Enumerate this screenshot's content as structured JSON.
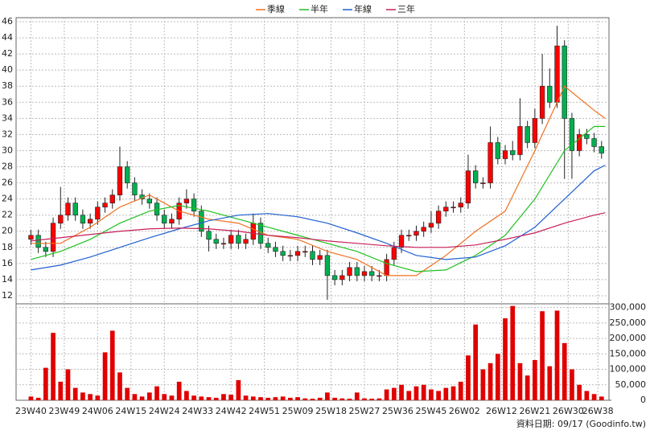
{
  "chart_data": {
    "type": "candlestick",
    "x": [
      0,
      2,
      4,
      6,
      8,
      10,
      12,
      14,
      16,
      18,
      20,
      22,
      24,
      26,
      28,
      30,
      32,
      34,
      36,
      38,
      40,
      42,
      44,
      46,
      48,
      50,
      52,
      54,
      56,
      58,
      60,
      62,
      64,
      66,
      68,
      70,
      72,
      74,
      76,
      78,
      80,
      82,
      84,
      86,
      88,
      90,
      92,
      94,
      96,
      98,
      100,
      102,
      104,
      106,
      108,
      110,
      112,
      114,
      116,
      118,
      120,
      122,
      124,
      126,
      128,
      130,
      132,
      134,
      136,
      138,
      140,
      142,
      144,
      146,
      148,
      150,
      152,
      154
    ],
    "open": [
      19,
      19.5,
      18,
      17.5,
      21,
      22,
      23.5,
      22,
      21,
      21.5,
      23,
      23.5,
      24.5,
      28,
      26,
      24.5,
      24,
      23.5,
      22,
      21,
      21.5,
      23.5,
      24,
      22.5,
      20,
      19,
      18.5,
      18.5,
      19.5,
      18.5,
      19,
      21,
      18.5,
      18,
      17.5,
      17,
      17,
      17.5,
      17.5,
      16.5,
      17,
      14.5,
      14,
      14.5,
      15.5,
      14.5,
      15,
      14.5,
      14.5,
      16.5,
      18,
      19.5,
      19.5,
      20,
      20.5,
      21,
      22.5,
      23,
      23,
      23.5,
      27.5,
      26,
      26,
      31,
      29,
      30,
      29.5,
      33,
      31,
      34,
      38,
      36,
      43,
      34,
      30,
      32,
      31.5,
      30.5
    ],
    "high": [
      20.2,
      20.2,
      18.7,
      21.7,
      25.5,
      24.2,
      24.2,
      22.7,
      22.2,
      23.7,
      24.2,
      25.2,
      30.5,
      28.7,
      26.7,
      25.2,
      24.7,
      24.2,
      22.7,
      22.2,
      24.2,
      25.2,
      24.7,
      23.2,
      20.7,
      19.7,
      19.2,
      20.2,
      20.2,
      19.7,
      22.2,
      21.7,
      19.2,
      18.7,
      18.2,
      17.7,
      18.2,
      18.2,
      18.2,
      17.7,
      17.7,
      15.2,
      15.2,
      16.2,
      16.2,
      15.7,
      15.7,
      15.2,
      17.2,
      18.7,
      20.2,
      20.2,
      20.7,
      21.2,
      22.5,
      23.2,
      23.7,
      23.7,
      24.2,
      29.5,
      28.2,
      26.7,
      33,
      31.7,
      30.7,
      31.2,
      36.5,
      33.7,
      35.2,
      42,
      40.2,
      45.5,
      43.7,
      34.7,
      32.7,
      32.7,
      32.2,
      31.2
    ],
    "low": [
      18.3,
      17.3,
      16.8,
      16.8,
      20.3,
      21.3,
      21.3,
      20.3,
      20.3,
      20.8,
      22.3,
      22.8,
      23.8,
      25.3,
      23.8,
      23.3,
      22.8,
      21.3,
      20.3,
      20.3,
      20.8,
      22.8,
      21.8,
      19.3,
      17.5,
      17.8,
      17.8,
      17.8,
      17.8,
      17.8,
      18.3,
      17.8,
      17.3,
      16.8,
      16.3,
      16.3,
      16.3,
      16.8,
      15.8,
      15.8,
      11.5,
      13.3,
      13.3,
      13.8,
      13.8,
      13.8,
      13.8,
      13.8,
      13.8,
      15.8,
      17.3,
      18.8,
      18.8,
      19.3,
      19.8,
      20.3,
      21.8,
      22.3,
      22.3,
      22.8,
      25.3,
      25.3,
      25.3,
      28.3,
      28.3,
      28.8,
      28.8,
      30.3,
      30.3,
      33.3,
      35.3,
      35.3,
      26.5,
      26.5,
      29.3,
      30.8,
      29.8,
      29
    ],
    "close": [
      19.5,
      18,
      17.5,
      21,
      22,
      23.5,
      22,
      21,
      21.5,
      23,
      23.5,
      24.5,
      28,
      26,
      24.5,
      24,
      23.5,
      22,
      21,
      21.5,
      23.5,
      24,
      22.5,
      20,
      19,
      18.5,
      18.5,
      19.5,
      18.5,
      19,
      21,
      18.5,
      18,
      17.5,
      17,
      17,
      17.5,
      17.5,
      16.5,
      17,
      14.5,
      14,
      14.5,
      15.5,
      14.5,
      15,
      14.5,
      14.5,
      16.5,
      18,
      19.5,
      19.5,
      20,
      20.5,
      21,
      22.5,
      23,
      23,
      23.5,
      27.5,
      26,
      26,
      31,
      29,
      30,
      29.5,
      33,
      31,
      34,
      38,
      36,
      43,
      34,
      30,
      32,
      31.5,
      30.5,
      29.7
    ],
    "up_color": "#ff0000",
    "down_color": "#00b050",
    "xlim": [
      -4,
      156
    ],
    "xticks": [
      {
        "value": 0,
        "label": "23W40"
      },
      {
        "value": 9,
        "label": "23W49"
      },
      {
        "value": 18,
        "label": "24W06"
      },
      {
        "value": 27,
        "label": "24W15"
      },
      {
        "value": 36,
        "label": "24W24"
      },
      {
        "value": 45,
        "label": "24W33"
      },
      {
        "value": 54,
        "label": "24W42"
      },
      {
        "value": 63,
        "label": "24W51"
      },
      {
        "value": 72,
        "label": "25W09"
      },
      {
        "value": 81,
        "label": "25W18"
      },
      {
        "value": 90,
        "label": "25W27"
      },
      {
        "value": 99,
        "label": "25W36"
      },
      {
        "value": 108,
        "label": "25W45"
      },
      {
        "value": 117,
        "label": "26W02"
      },
      {
        "value": 127,
        "label": "26W12"
      },
      {
        "value": 136,
        "label": "26W21"
      },
      {
        "value": 145,
        "label": "26W30"
      },
      {
        "value": 153,
        "label": "26W38"
      }
    ],
    "ylim": [
      11,
      46.5
    ],
    "yticks": [
      12,
      14,
      16,
      18,
      20,
      22,
      24,
      26,
      28,
      30,
      32,
      34,
      36,
      38,
      40,
      42,
      44,
      46
    ],
    "grid": true,
    "series": [
      {
        "name": "季線",
        "color": "#f07020",
        "x": [
          0,
          8,
          16,
          24,
          32,
          40,
          48,
          56,
          64,
          72,
          80,
          88,
          96,
          104,
          112,
          120,
          128,
          136,
          144,
          152,
          155
        ],
        "values": [
          18.5,
          18.5,
          20.5,
          23,
          24.5,
          22.5,
          21.5,
          21,
          19.5,
          19,
          17.5,
          16.5,
          14.5,
          14.5,
          17,
          20,
          22.5,
          30,
          38,
          35,
          34
        ]
      },
      {
        "name": "半年",
        "color": "#20c020",
        "x": [
          0,
          8,
          16,
          24,
          32,
          40,
          48,
          56,
          64,
          72,
          80,
          88,
          96,
          104,
          112,
          120,
          128,
          136,
          144,
          152,
          155
        ],
        "values": [
          16.5,
          17.5,
          19,
          21,
          22.5,
          23.2,
          22.5,
          21.5,
          20.5,
          19.5,
          18.5,
          17.5,
          16,
          15,
          15.2,
          17,
          19.5,
          24,
          30,
          33,
          33
        ]
      },
      {
        "name": "年線",
        "color": "#2060d0",
        "x": [
          0,
          8,
          16,
          24,
          32,
          40,
          48,
          56,
          64,
          72,
          80,
          88,
          96,
          104,
          112,
          120,
          128,
          136,
          144,
          152,
          155
        ],
        "values": [
          15.2,
          15.8,
          16.8,
          18,
          19.2,
          20.3,
          21.3,
          22,
          22.2,
          21.8,
          21,
          19.8,
          18.5,
          17,
          16.5,
          16.8,
          18.2,
          20.5,
          24,
          27.5,
          28.2
        ]
      },
      {
        "name": "三年",
        "color": "#c8205a",
        "x": [
          0,
          8,
          16,
          24,
          32,
          40,
          48,
          56,
          64,
          72,
          80,
          88,
          96,
          104,
          112,
          120,
          128,
          136,
          144,
          152,
          155
        ],
        "values": [
          18.8,
          19.2,
          19.6,
          20,
          20.3,
          20.4,
          20.3,
          20,
          19.5,
          19.2,
          18.8,
          18.5,
          18.2,
          18,
          18,
          18.3,
          19,
          19.8,
          21,
          22,
          22.3
        ]
      }
    ],
    "volume": {
      "color": "#e00000",
      "values": [
        12000,
        8000,
        105000,
        218000,
        60000,
        100000,
        40000,
        25000,
        20000,
        15000,
        155000,
        225000,
        90000,
        40000,
        20000,
        12000,
        25000,
        45000,
        20000,
        15000,
        60000,
        30000,
        15000,
        12000,
        10000,
        8000,
        20000,
        18000,
        65000,
        15000,
        12000,
        10000,
        8000,
        10000,
        12000,
        8000,
        10000,
        6000,
        5000,
        8000,
        25000,
        8000,
        6000,
        5000,
        25000,
        6000,
        5000,
        6000,
        35000,
        40000,
        50000,
        30000,
        45000,
        50000,
        35000,
        30000,
        40000,
        45000,
        60000,
        145000,
        245000,
        100000,
        120000,
        150000,
        265000,
        305000,
        120000,
        80000,
        130000,
        288000,
        110000,
        290000,
        185000,
        100000,
        50000,
        30000,
        20000,
        12000
      ],
      "ylim": [
        0,
        312000
      ],
      "yticks": [
        0,
        {
          "value": 50000,
          "label": "50,000"
        },
        {
          "value": 100000,
          "label": "100,000"
        },
        {
          "value": 150000,
          "label": "150,000"
        },
        {
          "value": 200000,
          "label": "200,000"
        },
        {
          "value": 250000,
          "label": "250,000"
        },
        {
          "value": 300000,
          "label": "300,000"
        }
      ]
    },
    "footer": "資料日期: 09/17  (Goodinfo.tw)"
  }
}
